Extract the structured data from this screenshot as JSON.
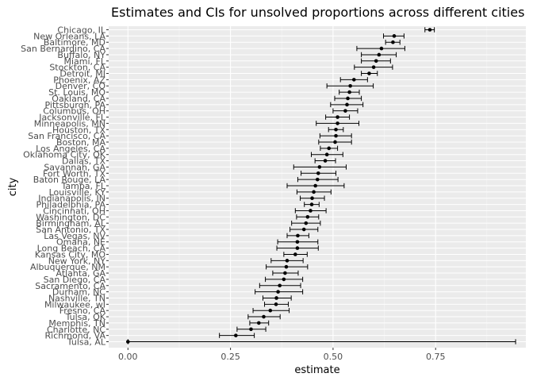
{
  "chart_data": {
    "type": "scatter",
    "title": "Estimates and CIs for unsolved proportions across different cities",
    "xlabel": "estimate",
    "ylabel": "city",
    "xlim": [
      -0.047,
      0.97
    ],
    "xticks": [
      0.0,
      0.25,
      0.5,
      0.75
    ],
    "xtick_labels": [
      "0.00",
      "0.25",
      "0.50",
      "0.75"
    ],
    "grid": true,
    "legend": "none",
    "colors": {
      "panel": "#ebebeb",
      "grid_major": "#ffffff",
      "grid_minor": "#f5f5f5",
      "mark": "#000000"
    },
    "points": [
      {
        "city": "Chicago, IL",
        "estimate": 0.736,
        "low": 0.724,
        "high": 0.747
      },
      {
        "city": "New Orleans, LA",
        "estimate": 0.649,
        "low": 0.623,
        "high": 0.673
      },
      {
        "city": "Baltimore, MD",
        "estimate": 0.646,
        "low": 0.628,
        "high": 0.663
      },
      {
        "city": "San Bernardino, CA",
        "estimate": 0.618,
        "low": 0.558,
        "high": 0.675
      },
      {
        "city": "Buffalo, NY",
        "estimate": 0.612,
        "low": 0.569,
        "high": 0.654
      },
      {
        "city": "Miami, FL",
        "estimate": 0.605,
        "low": 0.569,
        "high": 0.64
      },
      {
        "city": "Stockton, CA",
        "estimate": 0.599,
        "low": 0.552,
        "high": 0.645
      },
      {
        "city": "Detroit, MI",
        "estimate": 0.588,
        "low": 0.569,
        "high": 0.608
      },
      {
        "city": "Phoenix, AZ",
        "estimate": 0.551,
        "low": 0.518,
        "high": 0.584
      },
      {
        "city": "Denver, CO",
        "estimate": 0.542,
        "low": 0.485,
        "high": 0.598
      },
      {
        "city": "St. Louis, MO",
        "estimate": 0.54,
        "low": 0.515,
        "high": 0.564
      },
      {
        "city": "Oakland, CA",
        "estimate": 0.536,
        "low": 0.504,
        "high": 0.569
      },
      {
        "city": "Pittsburgh, PA",
        "estimate": 0.534,
        "low": 0.494,
        "high": 0.573
      },
      {
        "city": "Columbus, OH",
        "estimate": 0.53,
        "low": 0.5,
        "high": 0.56
      },
      {
        "city": "Jacksonville, FL",
        "estimate": 0.511,
        "low": 0.482,
        "high": 0.54
      },
      {
        "city": "Minneapolis, MN",
        "estimate": 0.511,
        "low": 0.459,
        "high": 0.563
      },
      {
        "city": "Houston, TX",
        "estimate": 0.507,
        "low": 0.489,
        "high": 0.525
      },
      {
        "city": "San Francisco, CA",
        "estimate": 0.507,
        "low": 0.468,
        "high": 0.545
      },
      {
        "city": "Boston, MA",
        "estimate": 0.505,
        "low": 0.465,
        "high": 0.545
      },
      {
        "city": "Los Angeles, CA",
        "estimate": 0.49,
        "low": 0.469,
        "high": 0.511
      },
      {
        "city": "Oklahoma City, OK",
        "estimate": 0.485,
        "low": 0.447,
        "high": 0.524
      },
      {
        "city": "Dallas, TX",
        "estimate": 0.481,
        "low": 0.456,
        "high": 0.506
      },
      {
        "city": "Savannah, GA",
        "estimate": 0.467,
        "low": 0.404,
        "high": 0.532
      },
      {
        "city": "Fort Worth, TX",
        "estimate": 0.464,
        "low": 0.422,
        "high": 0.507
      },
      {
        "city": "Baton Rouge, LA",
        "estimate": 0.462,
        "low": 0.414,
        "high": 0.512
      },
      {
        "city": "Tampa, FL",
        "estimate": 0.457,
        "low": 0.388,
        "high": 0.527
      },
      {
        "city": "Louisville, KY",
        "estimate": 0.453,
        "low": 0.412,
        "high": 0.495
      },
      {
        "city": "Indianapolis, IN",
        "estimate": 0.449,
        "low": 0.42,
        "high": 0.479
      },
      {
        "city": "Philadelphia, PA",
        "estimate": 0.448,
        "low": 0.43,
        "high": 0.466
      },
      {
        "city": "Cincinnati, OH",
        "estimate": 0.445,
        "low": 0.408,
        "high": 0.483
      },
      {
        "city": "Washington, DC",
        "estimate": 0.438,
        "low": 0.411,
        "high": 0.465
      },
      {
        "city": "Birmingham, AL",
        "estimate": 0.434,
        "low": 0.399,
        "high": 0.469
      },
      {
        "city": "San Antonio, TX",
        "estimate": 0.429,
        "low": 0.395,
        "high": 0.463
      },
      {
        "city": "Las Vegas, NV",
        "estimate": 0.414,
        "low": 0.388,
        "high": 0.441
      },
      {
        "city": "Omaha, NE",
        "estimate": 0.413,
        "low": 0.365,
        "high": 0.463
      },
      {
        "city": "Long Beach, CA",
        "estimate": 0.413,
        "low": 0.363,
        "high": 0.464
      },
      {
        "city": "Kansas City, MO",
        "estimate": 0.408,
        "low": 0.38,
        "high": 0.437
      },
      {
        "city": "New York, NY",
        "estimate": 0.388,
        "low": 0.349,
        "high": 0.427
      },
      {
        "city": "Albuquerque, NM",
        "estimate": 0.386,
        "low": 0.337,
        "high": 0.438
      },
      {
        "city": "Atlanta, GA",
        "estimate": 0.383,
        "low": 0.353,
        "high": 0.415
      },
      {
        "city": "San Diego, CA",
        "estimate": 0.38,
        "low": 0.335,
        "high": 0.426
      },
      {
        "city": "Sacramento, CA",
        "estimate": 0.37,
        "low": 0.321,
        "high": 0.421
      },
      {
        "city": "Durham, NC",
        "estimate": 0.366,
        "low": 0.31,
        "high": 0.426
      },
      {
        "city": "Nashville, TN",
        "estimate": 0.362,
        "low": 0.329,
        "high": 0.398
      },
      {
        "city": "Milwaukee, wI",
        "estimate": 0.361,
        "low": 0.333,
        "high": 0.391
      },
      {
        "city": "Fresno, CA",
        "estimate": 0.347,
        "low": 0.305,
        "high": 0.393
      },
      {
        "city": "Tulsa, OK",
        "estimate": 0.331,
        "low": 0.293,
        "high": 0.371
      },
      {
        "city": "Memphis, TN",
        "estimate": 0.319,
        "low": 0.297,
        "high": 0.343
      },
      {
        "city": "Charlotte, NC",
        "estimate": 0.3,
        "low": 0.266,
        "high": 0.336
      },
      {
        "city": "Richmond, VA",
        "estimate": 0.263,
        "low": 0.223,
        "high": 0.308
      },
      {
        "city": "Tulsa, AL",
        "estimate": 0.0,
        "low": 0.0,
        "high": 0.945
      }
    ]
  }
}
